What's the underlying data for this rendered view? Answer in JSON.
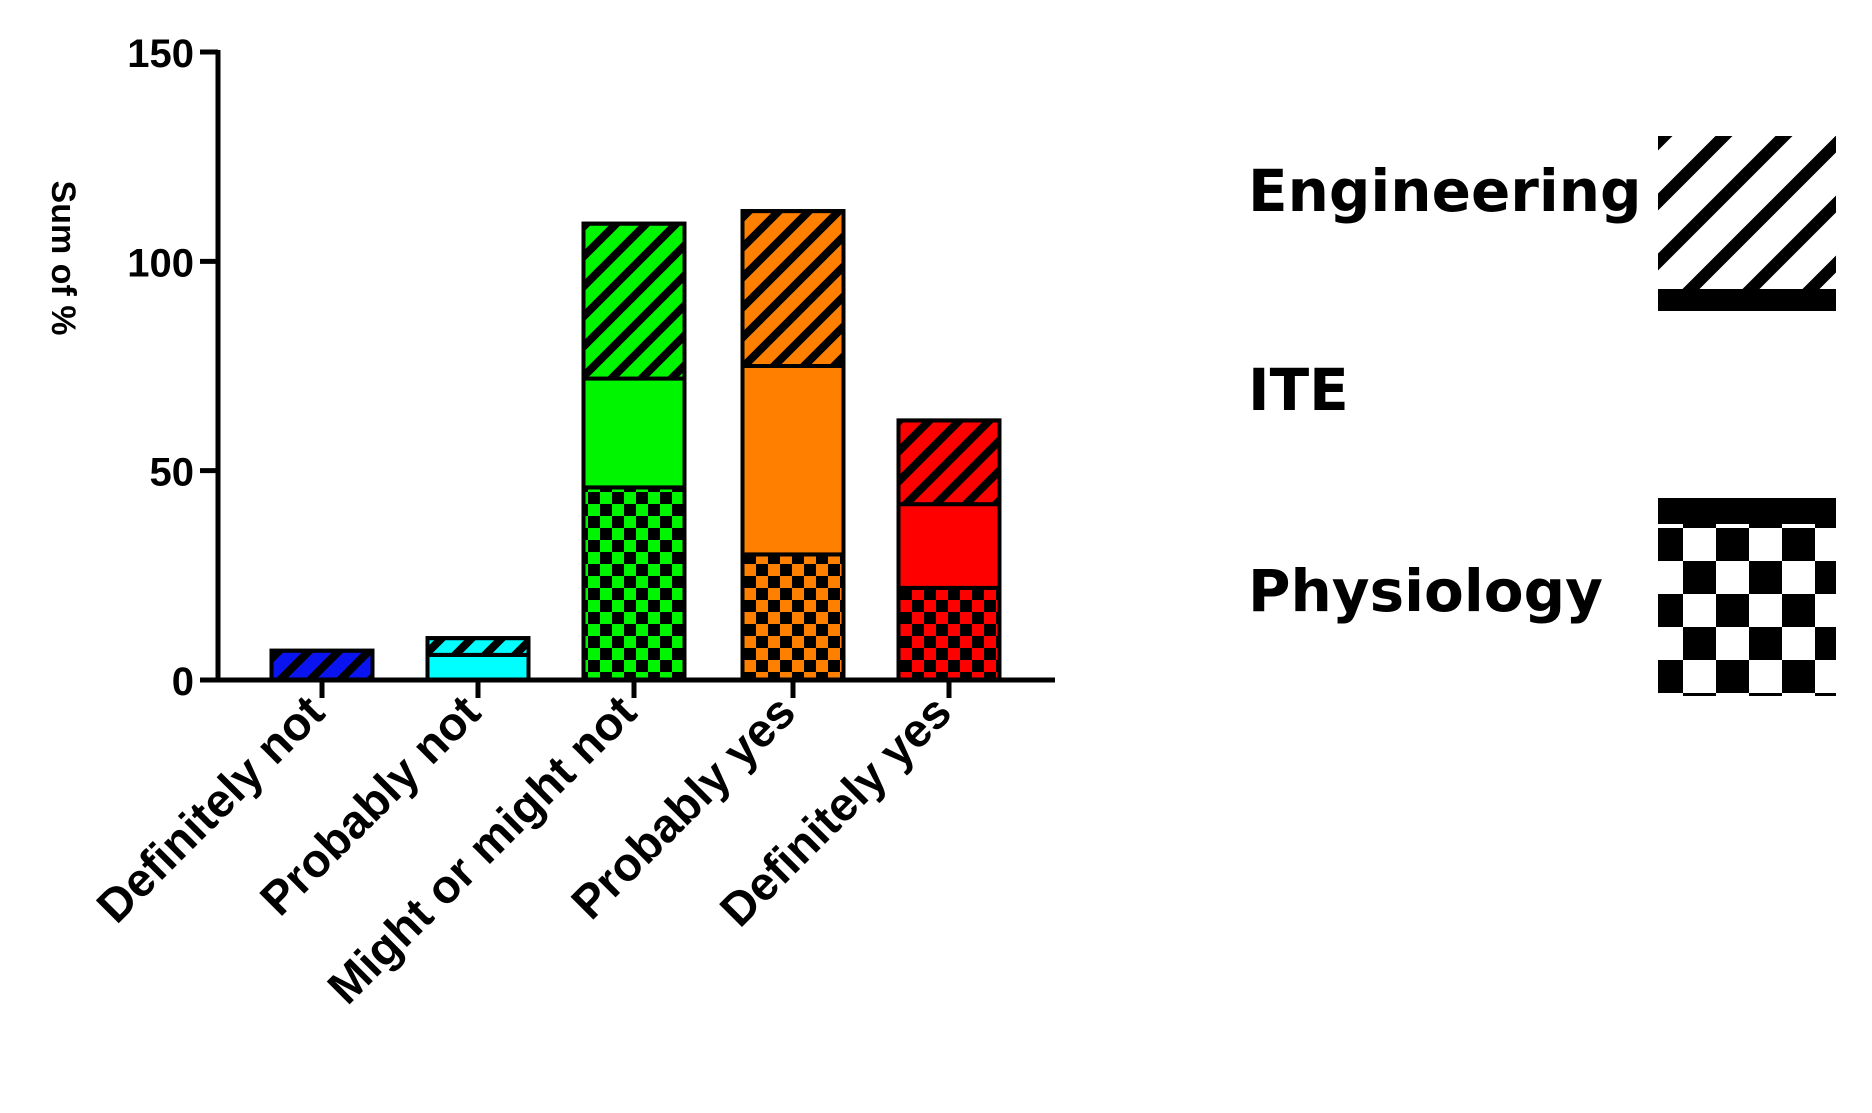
{
  "chart_data": {
    "type": "bar",
    "stacked": true,
    "title": "",
    "xlabel": "",
    "ylabel": "Sum of %",
    "ylim": [
      0,
      150
    ],
    "yticks": [
      0,
      50,
      100,
      150
    ],
    "categories": [
      "Definitely not",
      "Probably not",
      "Might or might not",
      "Probably yes",
      "Definitely yes"
    ],
    "category_colors": [
      "#0a14f0",
      "#00ffff",
      "#00f500",
      "#ff8000",
      "#ff0000"
    ],
    "series": [
      {
        "name": "Physiology",
        "pattern": "checkerboard",
        "values": [
          0,
          0,
          46,
          30,
          22
        ]
      },
      {
        "name": "ITE",
        "pattern": "solid",
        "values": [
          0,
          6,
          26,
          45,
          20
        ]
      },
      {
        "name": "Engineering",
        "pattern": "diagonal-hatch",
        "values": [
          7,
          4,
          37,
          37,
          20
        ]
      }
    ],
    "legend": {
      "position": "right",
      "order": [
        "Engineering",
        "ITE",
        "Physiology"
      ]
    }
  }
}
